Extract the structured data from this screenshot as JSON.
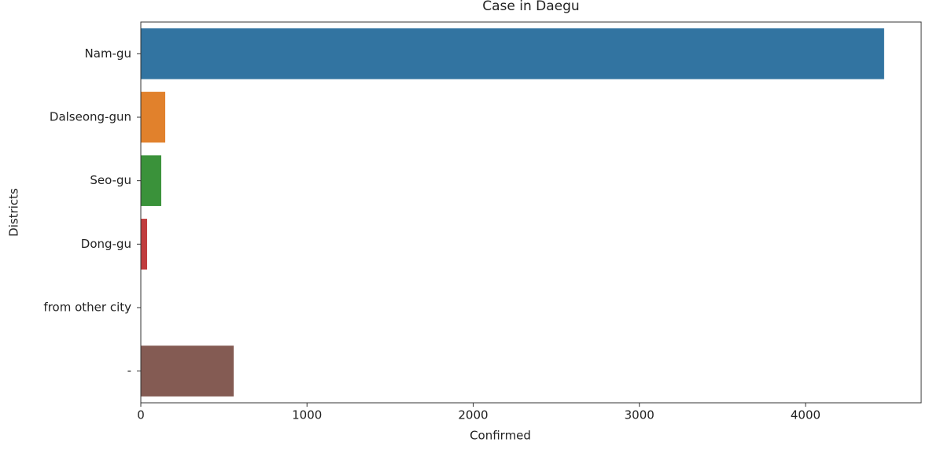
{
  "chart_data": {
    "type": "barh",
    "title": "Case in Daegu",
    "x_label": "Confirmed",
    "y_label": "Districts",
    "categories": [
      "Nam-gu",
      "Dalseong-gun",
      "Seo-gu",
      "Dong-gu",
      "from other city",
      "-"
    ],
    "values": [
      4473,
      147,
      123,
      38,
      0,
      559
    ],
    "colors": [
      "#3274a1",
      "#e1812c",
      "#3a923a",
      "#c03d3e",
      "#9372b2",
      "#845b53"
    ],
    "xlim": [
      0,
      4696
    ],
    "xticks": [
      0,
      1000,
      2000,
      3000,
      4000
    ],
    "grid": false
  }
}
